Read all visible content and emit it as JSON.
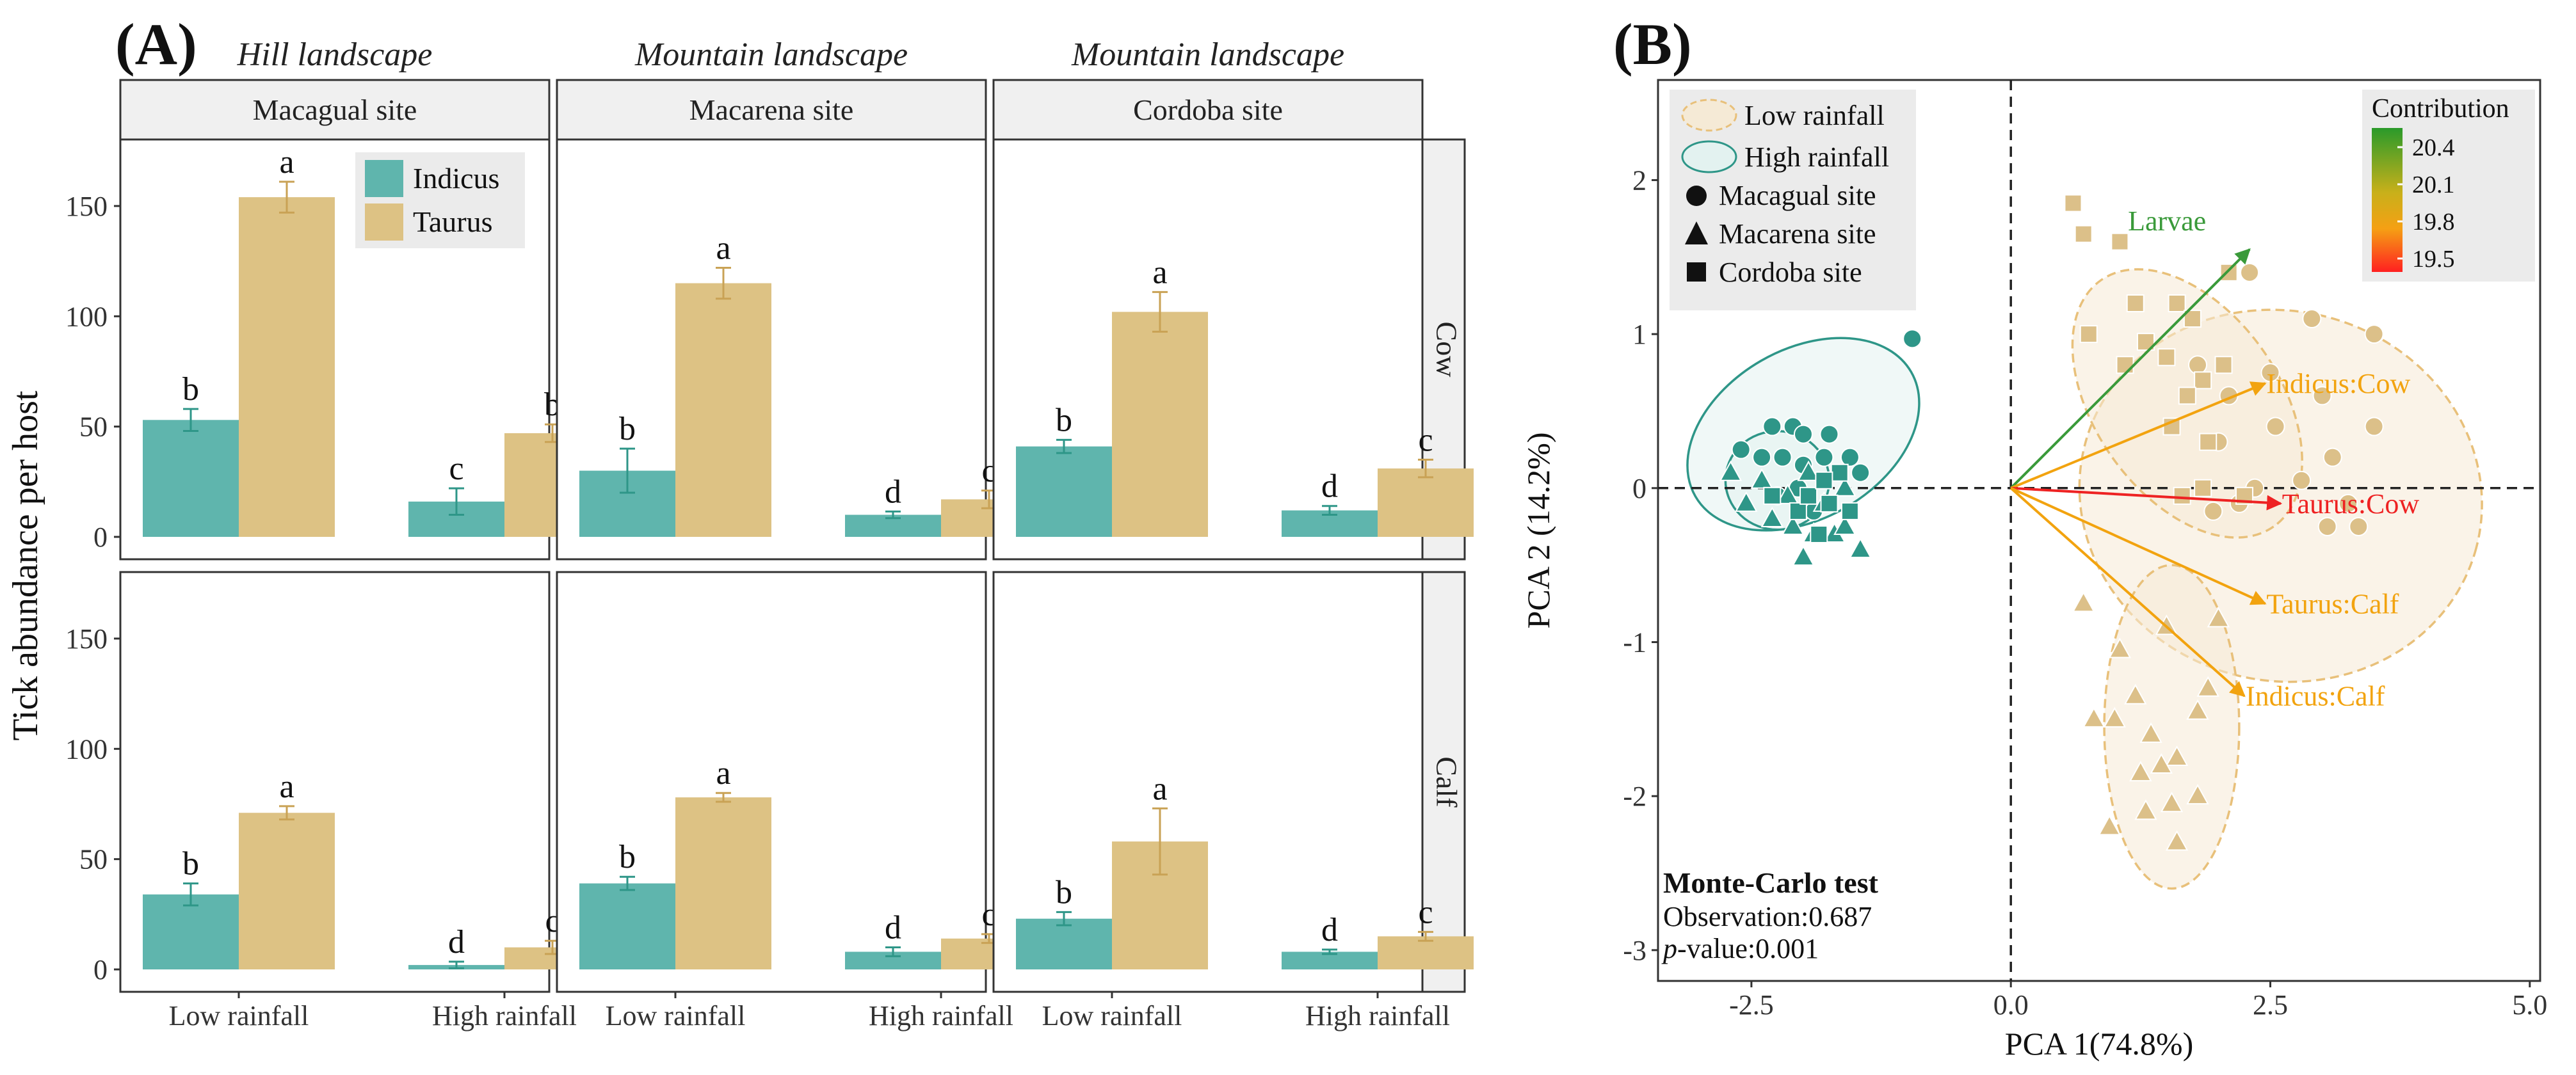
{
  "colors": {
    "indicus": "#5fb5ad",
    "taurus": "#ddc284",
    "indicus_dark": "#2e9688",
    "taurus_dark": "#c9a255",
    "strip_bg": "#f0f0f0",
    "arrow_orange": "#f2a30f",
    "arrow_green": "#3a9a3a",
    "arrow_red": "#ee2222",
    "low_fill": "#f5ead6",
    "low_stroke": "#e8c07a",
    "high_fill": "#e3f2f0",
    "high_stroke": "#2e9688"
  },
  "chart_data": [
    {
      "type": "bar",
      "panel_label": "(A)",
      "ylabel": "Tick abundance per host",
      "ylim": [
        0,
        170
      ],
      "yticks": [
        0,
        50,
        100,
        150
      ],
      "categories": [
        "Low rainfall",
        "High rainfall"
      ],
      "legend": [
        "Indicus",
        "Taurus"
      ],
      "landscapes": [
        "Hill landscape",
        "Mountain landscape",
        "Mountain landscape"
      ],
      "sites": [
        "Macagual site",
        "Macarena site",
        "Cordoba site"
      ],
      "rows": [
        "Cow",
        "Calf"
      ],
      "panels": [
        {
          "row": 0,
          "col": 0,
          "indicus": [
            53,
            16
          ],
          "indicus_err": [
            5,
            6
          ],
          "taurus": [
            154,
            47
          ],
          "taurus_err": [
            7,
            4
          ],
          "letters_indicus": [
            "b",
            "c"
          ],
          "letters_taurus": [
            "a",
            "b"
          ]
        },
        {
          "row": 0,
          "col": 1,
          "indicus": [
            30,
            10
          ],
          "indicus_err": [
            10,
            1.5
          ],
          "taurus": [
            115,
            17
          ],
          "taurus_err": [
            7,
            4
          ],
          "letters_indicus": [
            "b",
            "d"
          ],
          "letters_taurus": [
            "a",
            "c"
          ]
        },
        {
          "row": 0,
          "col": 2,
          "indicus": [
            41,
            12
          ],
          "indicus_err": [
            3,
            2
          ],
          "taurus": [
            102,
            31
          ],
          "taurus_err": [
            9,
            4
          ],
          "letters_indicus": [
            "b",
            "d"
          ],
          "letters_taurus": [
            "a",
            "c"
          ]
        },
        {
          "row": 1,
          "col": 0,
          "indicus": [
            34,
            2
          ],
          "indicus_err": [
            5,
            1.5
          ],
          "taurus": [
            71,
            10
          ],
          "taurus_err": [
            3,
            3
          ],
          "letters_indicus": [
            "b",
            "d"
          ],
          "letters_taurus": [
            "a",
            "c"
          ]
        },
        {
          "row": 1,
          "col": 1,
          "indicus": [
            39,
            8
          ],
          "indicus_err": [
            3,
            2
          ],
          "taurus": [
            78,
            14
          ],
          "taurus_err": [
            2,
            2
          ],
          "letters_indicus": [
            "b",
            "d"
          ],
          "letters_taurus": [
            "a",
            "c"
          ]
        },
        {
          "row": 1,
          "col": 2,
          "indicus": [
            23,
            8
          ],
          "indicus_err": [
            3,
            1
          ],
          "taurus": [
            58,
            15
          ],
          "taurus_err": [
            15,
            2
          ],
          "letters_indicus": [
            "b",
            "d"
          ],
          "letters_taurus": [
            "a",
            "c"
          ]
        }
      ]
    },
    {
      "type": "scatter",
      "panel_label": "(B)",
      "xlabel": "PCA 1(74.8%)",
      "ylabel": "PCA 2 (14.2%)",
      "xlim": [
        -3.4,
        5.1
      ],
      "ylim": [
        -3.2,
        2.65
      ],
      "xticks": [
        -2.5,
        0.0,
        2.5,
        5.0
      ],
      "xtick_labels": [
        "-2.5",
        "0.0",
        "2.5",
        "5.0"
      ],
      "yticks": [
        -3,
        -2,
        -1,
        0,
        1,
        2
      ],
      "yticks_labels": [
        "-3",
        "-2",
        "-1",
        "0",
        "1",
        "2"
      ],
      "legend_groups": [
        "Low rainfall",
        "High rainfall"
      ],
      "legend_sites": [
        "Macagual site",
        "Macarena site",
        "Cordoba site"
      ],
      "colorbar": {
        "title": "Contribution",
        "ticks": [
          "20.4",
          "20.1",
          "19.8",
          "19.5"
        ]
      },
      "annotation": {
        "title": "Monte-Carlo test",
        "observation": "Observation:0.687",
        "p_label": "p",
        "p_value": "-value:0.001"
      },
      "arrows": [
        {
          "label": "Larvae",
          "x": 2.3,
          "y": 1.55,
          "color": "green"
        },
        {
          "label": "Indicus:Cow",
          "x": 2.45,
          "y": 0.68,
          "color": "orange"
        },
        {
          "label": "Taurus:Cow",
          "x": 2.6,
          "y": -0.1,
          "color": "red"
        },
        {
          "label": "Taurus:Calf",
          "x": 2.45,
          "y": -0.75,
          "color": "orange"
        },
        {
          "label": "Indicus:Calf",
          "x": 2.25,
          "y": -1.35,
          "color": "orange"
        }
      ],
      "ellipses": [
        {
          "group": "High rainfall",
          "cx": -2.0,
          "cy": 0.35,
          "rx": 1.2,
          "ry": 0.55,
          "angle_deg": 30
        },
        {
          "group": "High rainfall",
          "cx": -2.25,
          "cy": 0.05,
          "rx": 0.5,
          "ry": 0.32,
          "angle_deg": 0
        },
        {
          "group": "Low rainfall",
          "cx": 2.6,
          "cy": -0.05,
          "rx": 1.95,
          "ry": 1.2,
          "angle_deg": -15
        },
        {
          "group": "Low rainfall",
          "cx": 1.7,
          "cy": 0.55,
          "rx": 1.45,
          "ry": 0.6,
          "angle_deg": -55
        },
        {
          "group": "Low rainfall",
          "cx": 1.55,
          "cy": -1.55,
          "rx": 0.65,
          "ry": 1.05,
          "angle_deg": 0
        }
      ],
      "points": {
        "low_circle": [
          [
            2.9,
            1.1
          ],
          [
            3.5,
            1.0
          ],
          [
            2.5,
            0.75
          ],
          [
            1.8,
            0.8
          ],
          [
            3.0,
            0.6
          ],
          [
            2.1,
            0.6
          ],
          [
            3.5,
            0.4
          ],
          [
            2.55,
            0.4
          ],
          [
            3.1,
            0.2
          ],
          [
            2.0,
            0.3
          ],
          [
            2.8,
            0.05
          ],
          [
            2.35,
            0.0
          ],
          [
            3.25,
            -0.1
          ],
          [
            3.05,
            -0.25
          ],
          [
            2.2,
            -0.1
          ],
          [
            3.35,
            -0.25
          ],
          [
            1.95,
            -0.15
          ],
          [
            2.3,
            1.4
          ]
        ],
        "low_square": [
          [
            0.6,
            1.85
          ],
          [
            1.05,
            1.6
          ],
          [
            0.75,
            1.0
          ],
          [
            1.3,
            0.95
          ],
          [
            1.6,
            1.2
          ],
          [
            1.75,
            1.1
          ],
          [
            2.1,
            1.4
          ],
          [
            1.5,
            0.85
          ],
          [
            1.85,
            0.7
          ],
          [
            2.05,
            0.8
          ],
          [
            1.7,
            0.6
          ],
          [
            1.1,
            0.8
          ],
          [
            1.9,
            0.3
          ],
          [
            1.2,
            1.2
          ],
          [
            1.55,
            0.4
          ],
          [
            1.85,
            0.0
          ],
          [
            2.25,
            -0.05
          ],
          [
            1.65,
            -0.05
          ],
          [
            0.7,
            1.65
          ]
        ],
        "low_triangle": [
          [
            0.7,
            -0.75
          ],
          [
            1.05,
            -1.05
          ],
          [
            1.5,
            -0.9
          ],
          [
            2.0,
            -0.85
          ],
          [
            1.9,
            -1.3
          ],
          [
            1.2,
            -1.35
          ],
          [
            1.35,
            -1.6
          ],
          [
            0.8,
            -1.5
          ],
          [
            1.0,
            -1.5
          ],
          [
            1.8,
            -1.45
          ],
          [
            1.6,
            -1.75
          ],
          [
            1.45,
            -1.8
          ],
          [
            1.55,
            -2.05
          ],
          [
            1.3,
            -2.1
          ],
          [
            0.95,
            -2.2
          ],
          [
            1.6,
            -2.3
          ],
          [
            1.8,
            -2.0
          ],
          [
            1.25,
            -1.85
          ]
        ],
        "high_circle": [
          [
            -0.95,
            0.97
          ],
          [
            -2.3,
            0.4
          ],
          [
            -2.1,
            0.4
          ],
          [
            -2.0,
            0.35
          ],
          [
            -1.75,
            0.35
          ],
          [
            -1.55,
            0.2
          ],
          [
            -1.8,
            0.2
          ],
          [
            -2.0,
            0.15
          ],
          [
            -2.2,
            0.2
          ],
          [
            -2.4,
            0.2
          ],
          [
            -2.6,
            0.25
          ],
          [
            -1.45,
            0.1
          ],
          [
            -2.25,
            -0.05
          ],
          [
            -1.9,
            -0.15
          ],
          [
            -2.05,
            0.0
          ]
        ],
        "high_triangle": [
          [
            -2.7,
            0.1
          ],
          [
            -2.55,
            -0.1
          ],
          [
            -2.3,
            -0.2
          ],
          [
            -2.1,
            -0.25
          ],
          [
            -1.7,
            -0.3
          ],
          [
            -1.9,
            -0.3
          ],
          [
            -2.0,
            -0.45
          ],
          [
            -1.6,
            -0.25
          ],
          [
            -1.45,
            -0.4
          ],
          [
            -2.4,
            0.05
          ],
          [
            -2.15,
            -0.05
          ],
          [
            -1.8,
            -0.1
          ],
          [
            -1.6,
            0.0
          ],
          [
            -1.95,
            0.1
          ]
        ],
        "high_square": [
          [
            -1.55,
            -0.15
          ],
          [
            -1.75,
            -0.1
          ],
          [
            -1.85,
            -0.3
          ],
          [
            -2.05,
            -0.15
          ],
          [
            -2.3,
            -0.05
          ],
          [
            -1.65,
            0.1
          ],
          [
            -1.95,
            -0.05
          ],
          [
            -1.8,
            0.05
          ]
        ]
      }
    }
  ]
}
